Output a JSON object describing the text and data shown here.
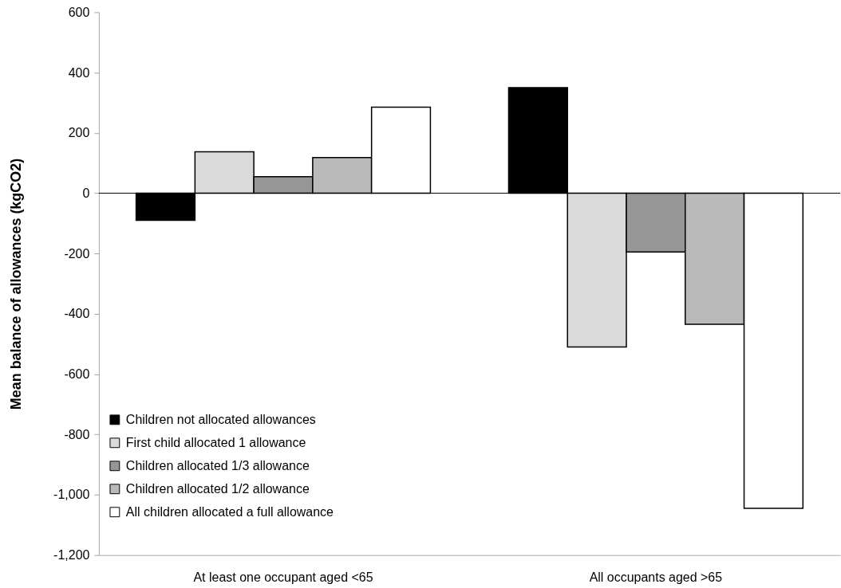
{
  "chart_data": {
    "type": "bar",
    "ylabel": "Mean balance of allowances (kgCO2)",
    "categories": [
      "At least one occupant aged <65",
      "All occupants aged >65"
    ],
    "series": [
      {
        "name": "Children not allocated allowances",
        "color": "#000000",
        "values": [
          -90,
          350
        ]
      },
      {
        "name": "First child allocated 1 allowance",
        "color": "#dadada",
        "values": [
          137,
          -510
        ]
      },
      {
        "name": "Children allocated 1/3 allowance",
        "color": "#969696",
        "values": [
          55,
          -195
        ]
      },
      {
        "name": "Children allocated 1/2 allowance",
        "color": "#bababa",
        "values": [
          118,
          -435
        ]
      },
      {
        "name": "All children allocated a full allowance",
        "color": "#ffffff",
        "values": [
          285,
          -1045
        ]
      }
    ],
    "ylim": [
      -1200,
      600
    ],
    "yticks": [
      {
        "value": -1200,
        "label": "-1,200"
      },
      {
        "value": -1000,
        "label": "-1,000"
      },
      -800,
      -600,
      -400,
      -200,
      0,
      200,
      400,
      600
    ],
    "ref_lines": [
      {
        "axis": "y",
        "value": 0,
        "color": "#000000"
      }
    ],
    "legend": "bottom left"
  }
}
